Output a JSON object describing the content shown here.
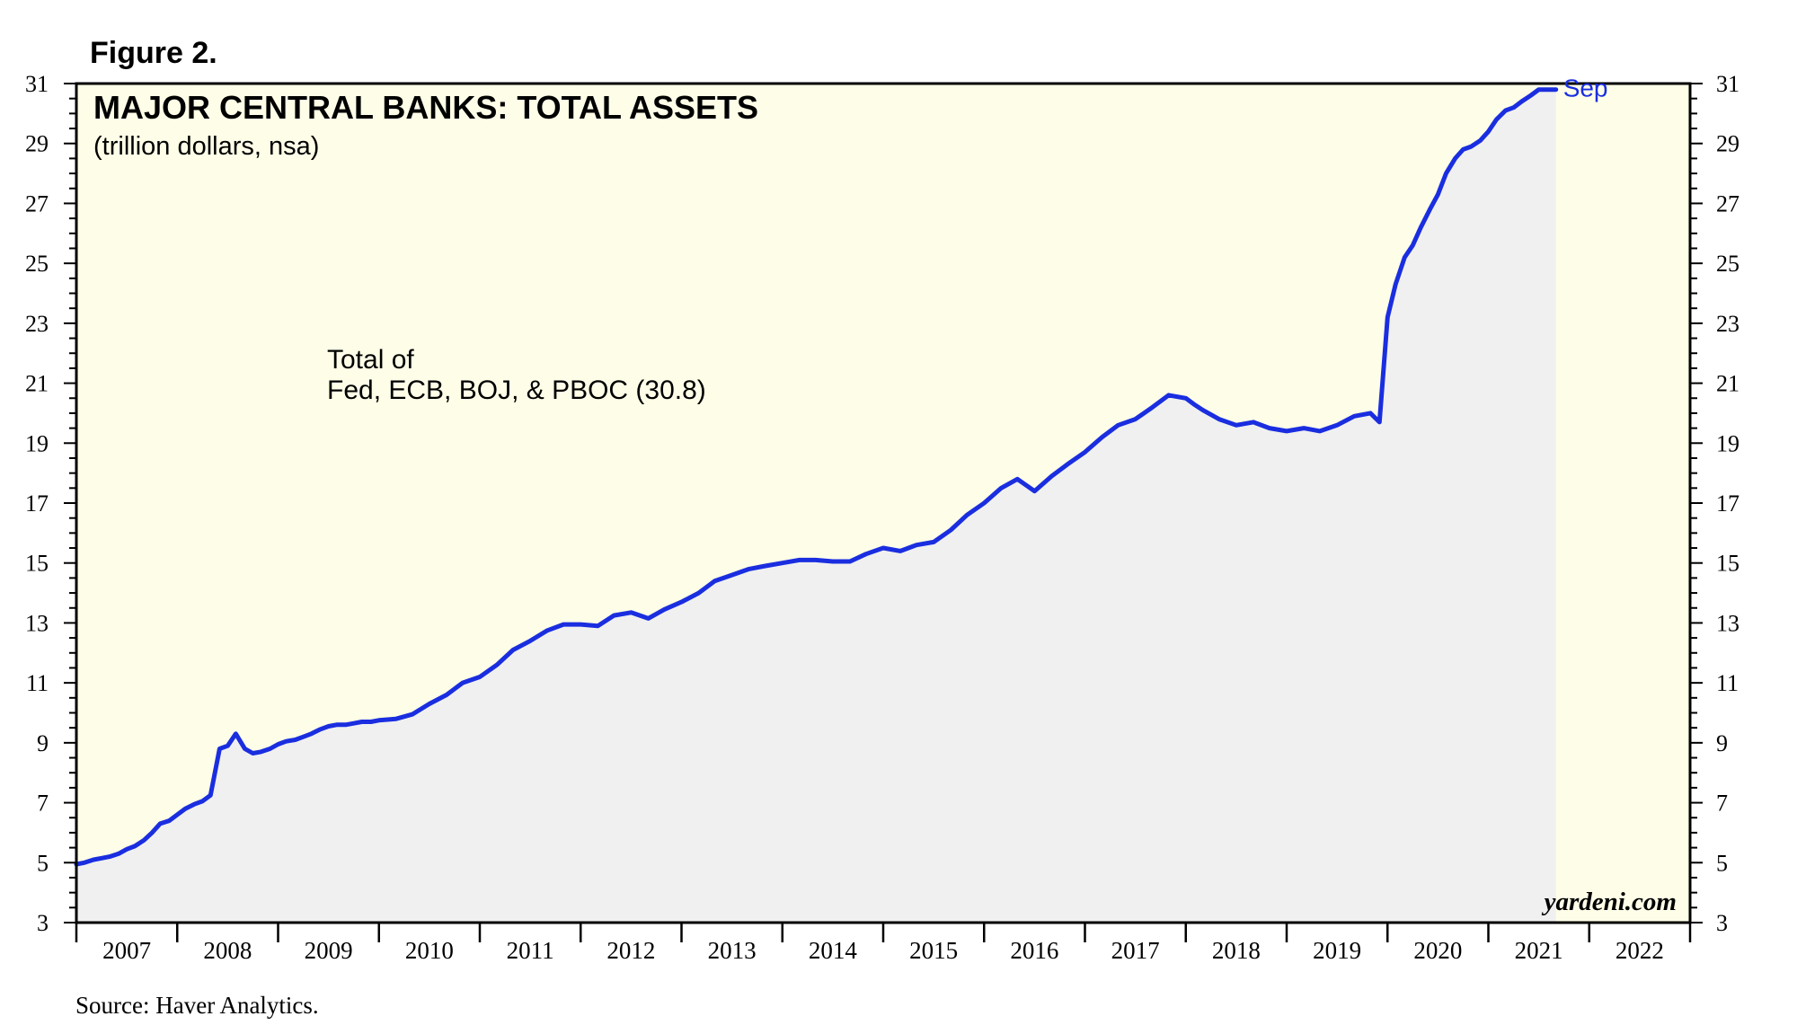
{
  "figure_label": "Figure 2.",
  "source": "Source: Haver Analytics.",
  "watermark": "yardeni.com",
  "colors": {
    "plot_background": "#fefee8",
    "area_fill": "#f0f0f0",
    "line": "#1a2ee0",
    "axis": "#000000"
  },
  "chart_data": {
    "type": "area",
    "title": "MAJOR CENTRAL BANKS: TOTAL ASSETS",
    "subtitle": "(trillion dollars, nsa)",
    "annotation": [
      "Total of",
      "Fed, ECB, BOJ, & PBOC (30.8)"
    ],
    "end_label": "Sep",
    "ylim": [
      3,
      31
    ],
    "yticks": [
      3,
      5,
      7,
      9,
      11,
      13,
      15,
      17,
      19,
      21,
      23,
      25,
      27,
      29,
      31
    ],
    "x_start": 2007,
    "x_end": 2023,
    "xtick_labels": [
      "2007",
      "2008",
      "2009",
      "2010",
      "2011",
      "2012",
      "2013",
      "2014",
      "2015",
      "2016",
      "2017",
      "2018",
      "2019",
      "2020",
      "2021",
      "2022"
    ],
    "series": [
      {
        "x": [
          2007.0,
          2007.08,
          2007.17,
          2007.25,
          2007.33,
          2007.42,
          2007.5,
          2007.58,
          2007.67,
          2007.75,
          2007.83,
          2007.92,
          2008.0,
          2008.08,
          2008.17,
          2008.25,
          2008.33,
          2008.42,
          2008.5,
          2008.58,
          2008.67,
          2008.75,
          2008.83,
          2008.92,
          2009.0,
          2009.08,
          2009.17,
          2009.25,
          2009.33,
          2009.42,
          2009.5,
          2009.58,
          2009.67,
          2009.75,
          2009.83,
          2009.92,
          2010.0,
          2010.17,
          2010.33,
          2010.5,
          2010.67,
          2010.83,
          2011.0,
          2011.17,
          2011.33,
          2011.5,
          2011.67,
          2011.83,
          2012.0,
          2012.17,
          2012.33,
          2012.5,
          2012.67,
          2012.83,
          2013.0,
          2013.17,
          2013.33,
          2013.5,
          2013.67,
          2013.83,
          2014.0,
          2014.17,
          2014.33,
          2014.5,
          2014.67,
          2014.83,
          2015.0,
          2015.17,
          2015.33,
          2015.5,
          2015.67,
          2015.83,
          2016.0,
          2016.17,
          2016.33,
          2016.5,
          2016.67,
          2016.83,
          2017.0,
          2017.17,
          2017.33,
          2017.5,
          2017.67,
          2017.83,
          2018.0,
          2018.08,
          2018.17,
          2018.33,
          2018.5,
          2018.67,
          2018.83,
          2019.0,
          2019.17,
          2019.33,
          2019.5,
          2019.67,
          2019.83,
          2019.92,
          2020.0,
          2020.08,
          2020.17,
          2020.25,
          2020.33,
          2020.42,
          2020.5,
          2020.58,
          2020.67,
          2020.75,
          2020.83,
          2020.92,
          2021.0,
          2021.08,
          2021.17,
          2021.25,
          2021.33,
          2021.42,
          2021.5,
          2021.58,
          2021.67
        ],
        "values": [
          4.95,
          5.0,
          5.1,
          5.15,
          5.2,
          5.3,
          5.45,
          5.55,
          5.75,
          6.0,
          6.3,
          6.4,
          6.6,
          6.8,
          6.95,
          7.05,
          7.25,
          8.8,
          8.9,
          9.3,
          8.8,
          8.65,
          8.7,
          8.8,
          8.95,
          9.05,
          9.1,
          9.2,
          9.3,
          9.45,
          9.55,
          9.6,
          9.6,
          9.65,
          9.7,
          9.7,
          9.75,
          9.8,
          9.95,
          10.3,
          10.6,
          11.0,
          11.2,
          11.6,
          12.1,
          12.4,
          12.75,
          12.95,
          12.95,
          12.9,
          13.25,
          13.35,
          13.15,
          13.45,
          13.7,
          14.0,
          14.4,
          14.6,
          14.8,
          14.9,
          15.0,
          15.1,
          15.1,
          15.05,
          15.05,
          15.3,
          15.5,
          15.4,
          15.6,
          15.7,
          16.1,
          16.6,
          17.0,
          17.5,
          17.8,
          17.4,
          17.9,
          18.3,
          18.7,
          19.2,
          19.6,
          19.8,
          20.2,
          20.6,
          20.5,
          20.3,
          20.1,
          19.8,
          19.6,
          19.7,
          19.5,
          19.4,
          19.5,
          19.4,
          19.6,
          19.9,
          20.0,
          19.7,
          23.2,
          24.3,
          25.2,
          25.6,
          26.2,
          26.8,
          27.3,
          28.0,
          28.5,
          28.8,
          28.9,
          29.1,
          29.4,
          29.8,
          30.1,
          30.2,
          30.4,
          30.6,
          30.8,
          30.8,
          30.8
        ]
      }
    ]
  }
}
